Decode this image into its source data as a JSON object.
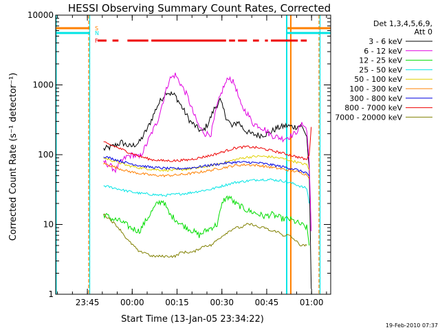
{
  "chart_data": {
    "type": "line",
    "title": "HESSI Observing Summary Count Rates, Corrected",
    "xlabel": "Start Time (13-Jan-05 23:34:22)",
    "ylabel": "Corrected Count Rate (s⁻¹ detector⁻¹)",
    "y_scale": "log",
    "ylim": [
      1,
      10000
    ],
    "x_unit": "minutes after 2005-01-13 23:34:22",
    "xlim": [
      0,
      92
    ],
    "x_ticks": [
      {
        "label": "23:45",
        "x": 10.6
      },
      {
        "label": "00:00",
        "x": 25.6
      },
      {
        "label": "00:15",
        "x": 40.6
      },
      {
        "label": "00:30",
        "x": 55.6
      },
      {
        "label": "00:45",
        "x": 70.6
      },
      {
        "label": "01:00",
        "x": 85.6
      }
    ],
    "y_ticks": [
      {
        "label": "1",
        "y": 1
      },
      {
        "label": "10",
        "y": 10
      },
      {
        "label": "100",
        "y": 100
      },
      {
        "label": "1000",
        "y": 1000
      },
      {
        "label": "10000",
        "y": 10000
      }
    ],
    "legend": {
      "position": "right",
      "header": [
        "Det 1,3,4,5,6,9,",
        "Att 0"
      ]
    },
    "series": [
      {
        "name": "3 - 6 keV",
        "color": "#000000",
        "x": [
          16,
          19,
          22,
          25,
          28,
          31,
          34,
          37,
          40,
          42,
          45,
          47,
          49,
          51,
          53,
          55,
          57,
          59,
          61,
          63,
          65,
          68,
          71,
          74,
          77,
          80,
          82,
          83,
          84,
          84.8,
          85.5
        ],
        "y": [
          120,
          130,
          150,
          130,
          150,
          250,
          500,
          800,
          700,
          500,
          300,
          250,
          210,
          280,
          450,
          600,
          350,
          250,
          300,
          230,
          200,
          190,
          200,
          240,
          260,
          250,
          260,
          230,
          180,
          60,
          1.2
        ]
      },
      {
        "name": "6 - 12 keV",
        "color": "#e000e0",
        "x": [
          16,
          18,
          20,
          22,
          24,
          26,
          28,
          30,
          32,
          34,
          36,
          38,
          40,
          42,
          44,
          46,
          48,
          50,
          52,
          54,
          56,
          58,
          60,
          62,
          64,
          66,
          68,
          70,
          72,
          74,
          76,
          78,
          80,
          82,
          83,
          84,
          84.8,
          85.5
        ],
        "y": [
          80,
          70,
          60,
          80,
          95,
          100,
          90,
          130,
          200,
          300,
          600,
          1200,
          1400,
          1000,
          700,
          400,
          250,
          200,
          200,
          500,
          900,
          1300,
          1000,
          500,
          400,
          280,
          260,
          230,
          190,
          180,
          170,
          180,
          200,
          260,
          280,
          220,
          80,
          8
        ]
      },
      {
        "name": "12 - 25 keV",
        "color": "#00dd00",
        "x": [
          16,
          19,
          22,
          25,
          28,
          30,
          32,
          34,
          36,
          38,
          40,
          42,
          44,
          46,
          48,
          50,
          52,
          54,
          56,
          58,
          60,
          62,
          64,
          66,
          68,
          70,
          72,
          74,
          76,
          78,
          80,
          82,
          84,
          84.8
        ],
        "y": [
          14,
          12,
          11,
          9,
          8,
          11,
          15,
          20,
          22,
          14,
          12,
          10,
          9,
          8,
          7,
          8,
          9,
          10,
          22,
          25,
          20,
          18,
          16,
          15,
          14,
          13,
          14,
          13,
          12,
          12,
          11,
          10,
          9,
          5
        ]
      },
      {
        "name": "25 - 50 keV",
        "color": "#00e5e5",
        "x": [
          16,
          20,
          24,
          28,
          32,
          36,
          40,
          44,
          48,
          52,
          56,
          60,
          64,
          68,
          72,
          76,
          80,
          82,
          84,
          84.8
        ],
        "y": [
          36,
          33,
          30,
          28,
          27,
          26,
          27,
          28,
          30,
          32,
          36,
          40,
          42,
          44,
          44,
          42,
          38,
          35,
          33,
          20
        ]
      },
      {
        "name": "50 - 100 keV",
        "color": "#e0d000",
        "x": [
          16,
          20,
          24,
          28,
          32,
          36,
          40,
          44,
          48,
          52,
          56,
          60,
          64,
          68,
          72,
          76,
          80,
          82,
          84,
          84.8
        ],
        "y": [
          90,
          80,
          70,
          65,
          62,
          60,
          60,
          62,
          65,
          70,
          76,
          85,
          92,
          95,
          93,
          88,
          80,
          75,
          72,
          60
        ]
      },
      {
        "name": "100 - 300 keV",
        "color": "#ff8000",
        "x": [
          16,
          20,
          24,
          28,
          32,
          36,
          40,
          44,
          48,
          52,
          56,
          60,
          64,
          68,
          72,
          76,
          80,
          82,
          84,
          84.8
        ],
        "y": [
          75,
          66,
          58,
          54,
          51,
          50,
          51,
          53,
          56,
          60,
          65,
          70,
          72,
          70,
          66,
          62,
          58,
          55,
          52,
          45
        ]
      },
      {
        "name": "300 - 800 keV",
        "color": "#0000e0",
        "x": [
          16,
          20,
          24,
          28,
          32,
          36,
          40,
          44,
          48,
          52,
          56,
          60,
          64,
          68,
          72,
          76,
          80,
          82,
          84,
          84.8
        ],
        "y": [
          95,
          85,
          76,
          70,
          66,
          64,
          63,
          64,
          67,
          71,
          75,
          78,
          78,
          76,
          72,
          67,
          62,
          58,
          55,
          50
        ]
      },
      {
        "name": "800 - 7000 keV",
        "color": "#ee0000",
        "x": [
          16,
          20,
          24,
          28,
          32,
          36,
          40,
          44,
          48,
          52,
          56,
          60,
          64,
          68,
          72,
          76,
          80,
          82,
          84,
          84.8,
          85.5
        ],
        "y": [
          150,
          130,
          110,
          95,
          85,
          82,
          82,
          84,
          90,
          98,
          110,
          125,
          130,
          125,
          115,
          105,
          95,
          90,
          85,
          100,
          250
        ]
      },
      {
        "name": "7000 - 20000 keV",
        "color": "#808000",
        "x": [
          16,
          18,
          20,
          22,
          24,
          26,
          28,
          30,
          32,
          34,
          36,
          38,
          40,
          42,
          44,
          46,
          48,
          50,
          52,
          54,
          56,
          58,
          60,
          62,
          64,
          66,
          68,
          70,
          72,
          74,
          76,
          78,
          80,
          82,
          84
        ],
        "y": [
          14,
          12,
          10,
          8,
          6,
          5,
          4,
          4,
          3.5,
          3.5,
          3.5,
          3.5,
          3.5,
          4,
          4,
          4,
          4.5,
          5,
          5,
          6,
          7,
          8,
          9,
          9,
          10,
          10,
          9,
          9,
          8,
          8,
          7,
          7,
          6,
          5,
          5
        ]
      }
    ],
    "flag_bars": [
      {
        "label": "S",
        "color": "#ff8000"
      },
      {
        "label": "N",
        "color": "#00e5e5"
      },
      {
        "label": "F",
        "color": "#ee0000",
        "segments": [
          [
            14,
            17
          ],
          [
            19,
            21
          ],
          [
            24,
            31
          ],
          [
            32,
            57
          ],
          [
            58,
            60
          ],
          [
            61,
            64
          ],
          [
            66,
            68
          ],
          [
            70,
            71
          ],
          [
            72,
            81
          ],
          [
            82,
            84
          ]
        ]
      }
    ],
    "footer_date": "19-Feb-2010 07:37"
  }
}
